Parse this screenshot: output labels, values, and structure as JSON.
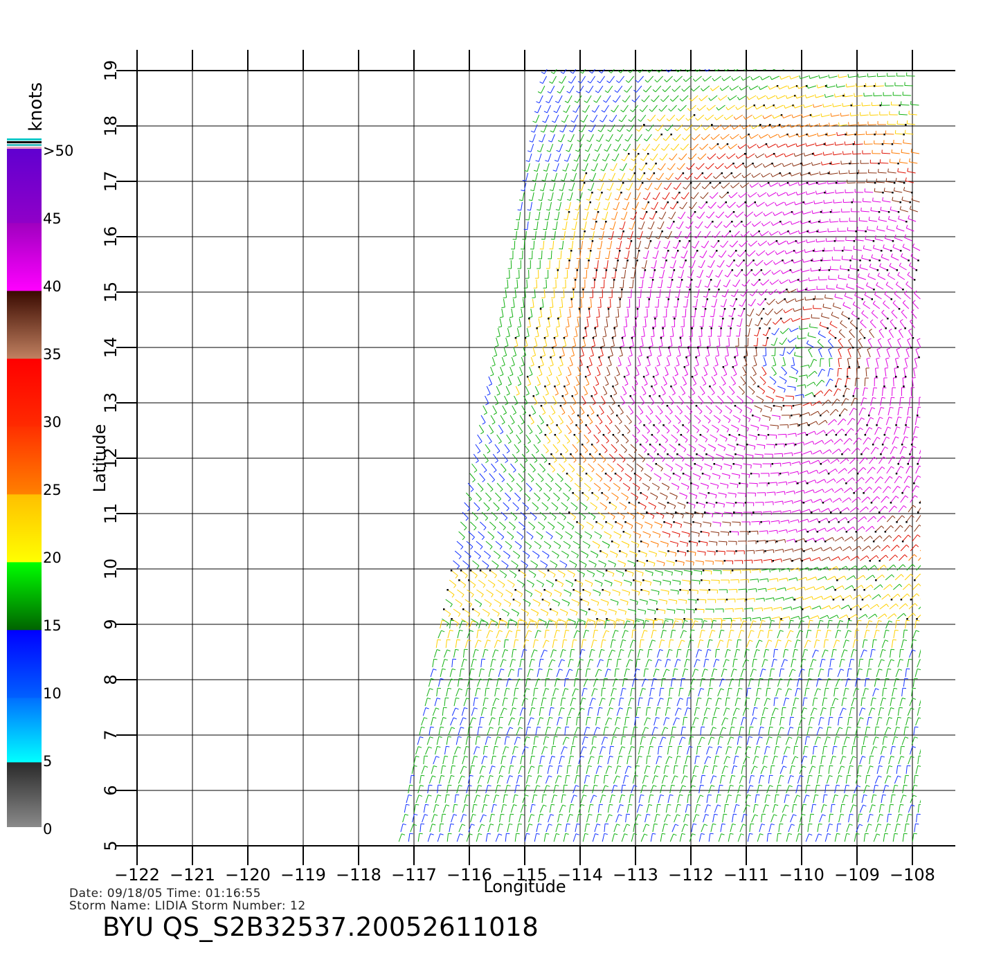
{
  "map": {
    "xlabel": "Longitude",
    "ylabel": "Latitude",
    "x_ticks": [
      "−122",
      "−121",
      "−120",
      "−119",
      "−118",
      "−117",
      "−116",
      "−115",
      "−114",
      "−113",
      "−112",
      "−111",
      "−110",
      "−109",
      "−108"
    ],
    "y_ticks": [
      "5",
      "6",
      "7",
      "8",
      "9",
      "10",
      "11",
      "12",
      "13",
      "14",
      "15",
      "16",
      "17",
      "18",
      "19"
    ],
    "lon_range": [
      -122,
      -107.6
    ],
    "lat_range": [
      5,
      19
    ],
    "storm_center": {
      "lon": -110.0,
      "lat": 13.8
    }
  },
  "colorbar": {
    "unit": "knots",
    "labels": [
      "0",
      "5",
      "10",
      "15",
      "20",
      "25",
      "30",
      "35",
      "40",
      "45",
      ">50"
    ],
    "colors": {
      "0-5": [
        "#808080",
        "#2a2a2a"
      ],
      "5-10": [
        "#00ffff",
        "#0080ff"
      ],
      "10-15": [
        "#0060ff",
        "#0000ff"
      ],
      "15-20": [
        "#006400",
        "#00ff00"
      ],
      "20-25": [
        "#ffff00",
        "#ffc000"
      ],
      "25-30": [
        "#ff8000",
        "#ff3000"
      ],
      "30-35": [
        "#ff2000",
        "#ff0000"
      ],
      "35-40": [
        "#b87050",
        "#3a0a00"
      ],
      "40-45": [
        "#ff00ff",
        "#c000c0"
      ],
      "45-50": [
        "#8000c0",
        "#6000d0"
      ]
    }
  },
  "meta": {
    "date_line": "Date: 09/18/05   Time: 01:16:55",
    "storm_line": "Storm  Name:  LIDIA    Storm  Number:  12",
    "file_id": "BYU  QS_S2B32537.20052611018"
  }
}
